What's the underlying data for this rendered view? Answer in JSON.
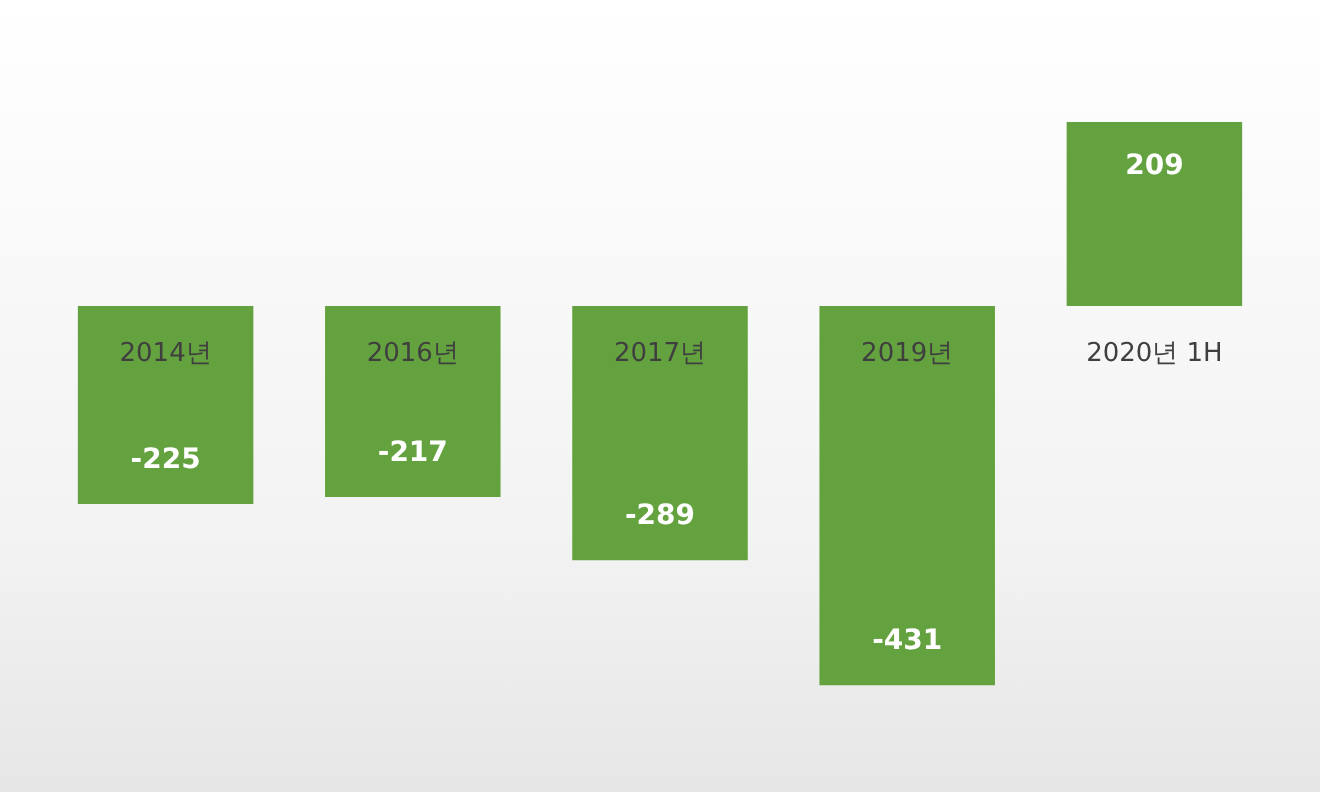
{
  "chart_data": {
    "type": "bar",
    "categories": [
      "2014년",
      "2016년",
      "2017년",
      "2019년",
      "2020년 1H"
    ],
    "values": [
      -225,
      -217,
      -289,
      -431,
      209
    ],
    "color": "#64a23f",
    "data_labels": true,
    "tick_labels": "x",
    "grid": false
  }
}
